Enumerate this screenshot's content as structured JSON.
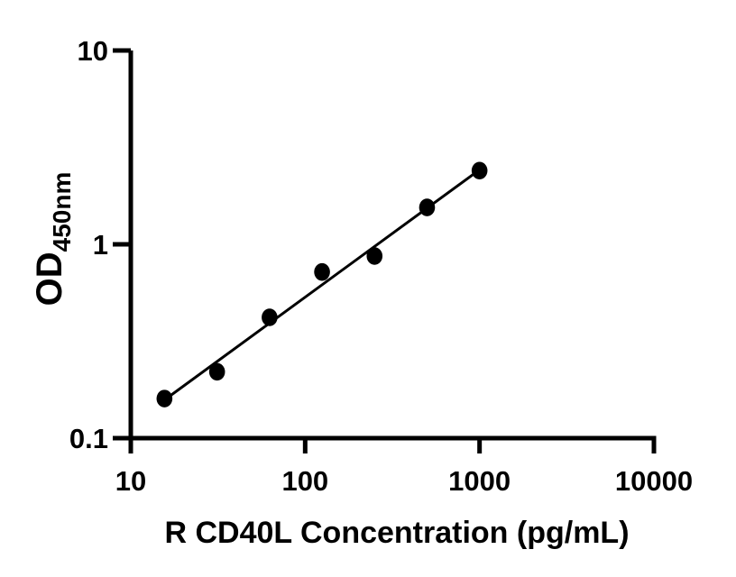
{
  "chart_data": {
    "type": "scatter",
    "title": "",
    "xlabel": "R CD40L Concentration (pg/mL)",
    "ylabel": "OD450nm",
    "ylabel_main": "OD",
    "ylabel_sub": "450nm",
    "x_scale": "log",
    "y_scale": "log",
    "xlim": [
      10,
      10000
    ],
    "ylim": [
      0.1,
      10
    ],
    "x_ticks": [
      {
        "value": 10,
        "label": "10"
      },
      {
        "value": 100,
        "label": "100"
      },
      {
        "value": 1000,
        "label": "1000"
      },
      {
        "value": 10000,
        "label": "10000"
      }
    ],
    "y_ticks": [
      {
        "value": 0.1,
        "label": "0.1"
      },
      {
        "value": 1,
        "label": "1"
      },
      {
        "value": 10,
        "label": "10"
      }
    ],
    "grid": false,
    "points": [
      {
        "x": 15.6,
        "y": 0.16
      },
      {
        "x": 31.25,
        "y": 0.22
      },
      {
        "x": 62.5,
        "y": 0.42
      },
      {
        "x": 125,
        "y": 0.72
      },
      {
        "x": 250,
        "y": 0.87
      },
      {
        "x": 500,
        "y": 1.55
      },
      {
        "x": 1000,
        "y": 2.4
      }
    ],
    "trendline": {
      "type": "linear-loglog-regression",
      "from_x": 15.6,
      "to_x": 1000
    },
    "colors": {
      "axis": "#000000",
      "marker": "#000000",
      "trendline": "#000000",
      "text": "#000000",
      "background": "#ffffff"
    }
  }
}
